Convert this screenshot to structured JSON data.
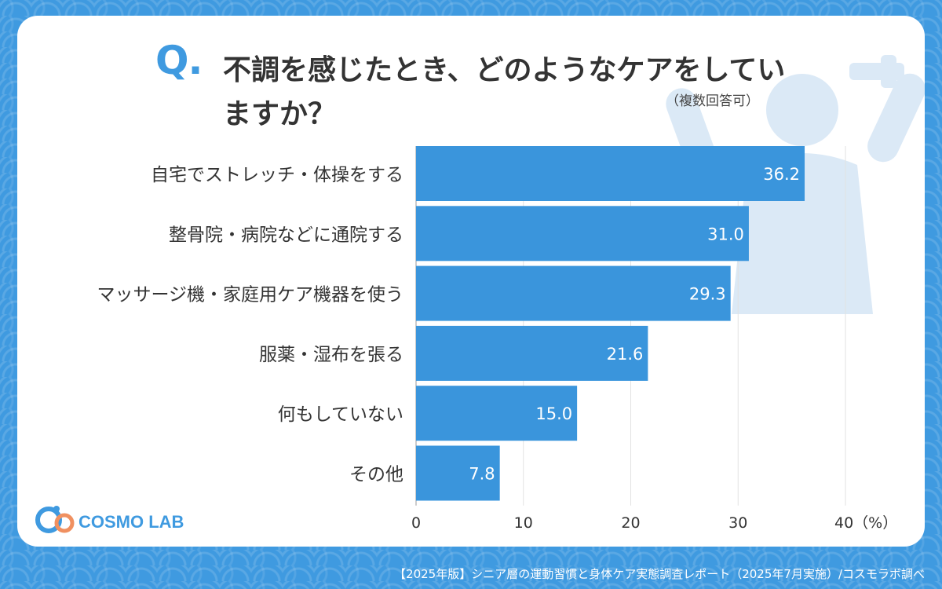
{
  "header": {
    "question_mark": "Q.",
    "question": "不調を感じたとき、どのようなケアをしていますか？",
    "note": "（複数回答可）"
  },
  "logo": {
    "text": "COSMO LAB"
  },
  "footer": {
    "source": "【2025年版】シニア層の運動習慣と身体ケア実態調査レポート（2025年7月実施）/コスモラボ調べ"
  },
  "colors": {
    "bar": "#3a95dc",
    "background": "#3f9ae0",
    "accent": "#f09060"
  },
  "chart_data": {
    "type": "bar",
    "orientation": "horizontal",
    "categories": [
      "自宅でストレッチ・体操をする",
      "整骨院・病院などに通院する",
      "マッサージ機・家庭用ケア機器を使う",
      "服薬・湿布を張る",
      "何もしていない",
      "その他"
    ],
    "values": [
      36.2,
      31.0,
      29.3,
      21.6,
      15.0,
      7.8
    ],
    "value_labels": [
      "36.2",
      "31.0",
      "29.3",
      "21.6",
      "15.0",
      "7.8"
    ],
    "xlim": [
      0,
      40
    ],
    "xticks": [
      "0",
      "10",
      "20",
      "30",
      "40（%）"
    ],
    "grid": true
  }
}
